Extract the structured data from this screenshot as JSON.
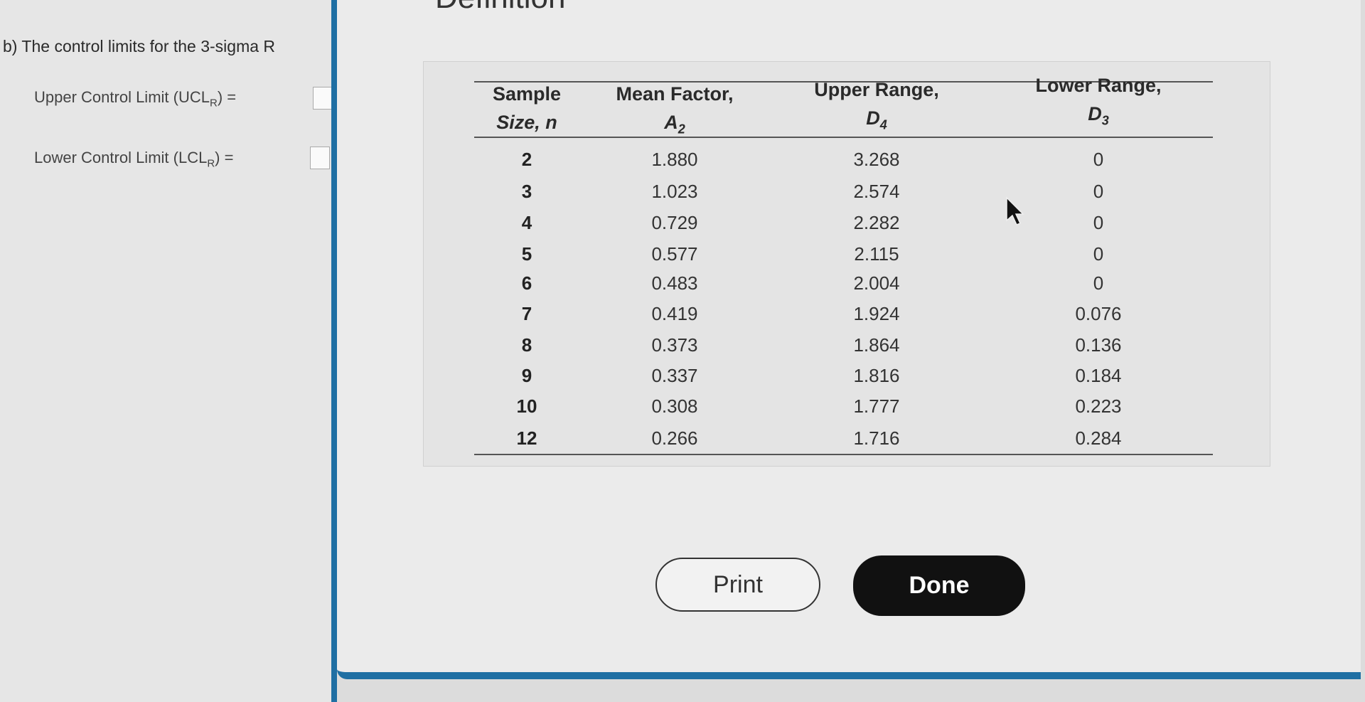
{
  "dialog": {
    "title": "Definition",
    "print_label": "Print",
    "done_label": "Done"
  },
  "question": {
    "prompt": "b) The control limits for the 3-sigma R",
    "ucl_label": "Upper Control Limit (UCL",
    "lcl_label": "Lower Control Limit (LCL",
    "subscript": "R",
    "suffix": ") =",
    "ucl_value": "",
    "lcl_value": ""
  },
  "table": {
    "headers": [
      {
        "line1": "Sample",
        "line2": "Size, n"
      },
      {
        "line1": "Mean Factor,",
        "line2": "A2"
      },
      {
        "line1": "Upper Range,",
        "line2": "D4"
      },
      {
        "line1": "Lower Range,",
        "line2": "D3"
      }
    ],
    "rows": [
      [
        "2",
        "1.880",
        "3.268",
        "0"
      ],
      [
        "3",
        "1.023",
        "2.574",
        "0"
      ],
      [
        "4",
        "0.729",
        "2.282",
        "0"
      ],
      [
        "5",
        "0.577",
        "2.115",
        "0"
      ],
      [
        "6",
        "0.483",
        "2.004",
        "0"
      ],
      [
        "7",
        "0.419",
        "1.924",
        "0.076"
      ],
      [
        "8",
        "0.373",
        "1.864",
        "0.136"
      ],
      [
        "9",
        "0.337",
        "1.816",
        "0.184"
      ],
      [
        "10",
        "0.308",
        "1.777",
        "0.223"
      ],
      [
        "12",
        "0.266",
        "1.716",
        "0.284"
      ]
    ]
  },
  "colors": {
    "accent": "#1f6fa3",
    "done_button": "#111111"
  }
}
